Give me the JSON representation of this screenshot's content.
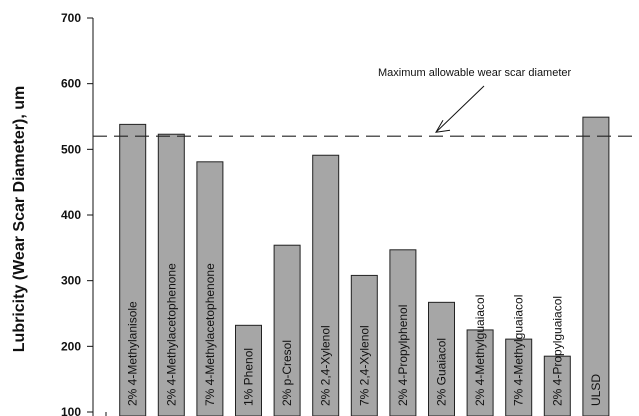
{
  "chart_data": {
    "type": "bar",
    "title": "",
    "xlabel": "",
    "ylabel": "Lubricity (Wear Scar Diameter), um",
    "ylim": [
      100,
      700
    ],
    "yticks": [
      100,
      200,
      300,
      400,
      500,
      600,
      700
    ],
    "categories": [
      "2% 4-Methylanisole",
      "2% 4-Methylacetophenone",
      "7% 4-Methylacetophenone",
      "1% Phenol",
      "2% p-Cresol",
      "2% 2,4-Xylenol",
      "7% 2,4-Xylenol",
      "2% 4-Propylphenol",
      "2% Guaiacol",
      "2% 4-Methylguaiacol",
      "7% 4-Methylguaiacol",
      "2% 4-Propylguaiacol",
      "ULSD"
    ],
    "values": [
      538,
      523,
      481,
      232,
      354,
      491,
      308,
      347,
      267,
      225,
      211,
      185,
      549
    ],
    "threshold": {
      "value": 520,
      "label": "Maximum allowable wear scar diameter"
    },
    "bar_color": "#a6a6a6",
    "grid": false
  }
}
